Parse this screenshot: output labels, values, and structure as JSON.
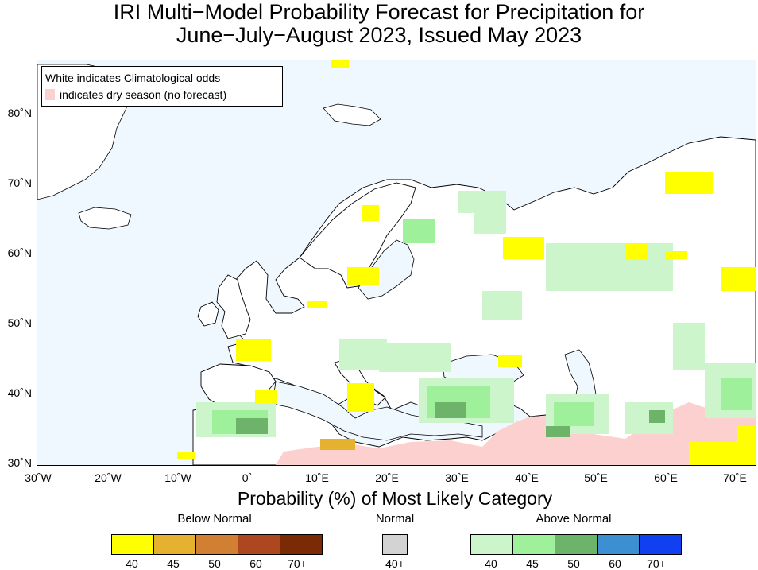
{
  "title": {
    "line1": "IRI Multi−Model Probability Forecast for Precipitation for",
    "line2": "June−July−August 2023, Issued May 2023"
  },
  "map_legend": {
    "line1": "White indicates Climatological odds",
    "line2": "indicates dry season (no forecast)"
  },
  "y_ticks": [
    "80˚N",
    "70˚N",
    "60˚N",
    "50˚N",
    "40˚N",
    "30˚N"
  ],
  "x_ticks": [
    "30˚W",
    "20˚W",
    "10˚W",
    "0˚",
    "10˚E",
    "20˚E",
    "30˚E",
    "40˚E",
    "50˚E",
    "60˚E",
    "70˚E"
  ],
  "x_axis_label": "Probability (%) of Most Likely Category",
  "categories": {
    "below": {
      "label": "Below Normal",
      "colors": [
        "#ffff00",
        "#e5b22f",
        "#d07f33",
        "#ad4720",
        "#7a2b06"
      ],
      "ticks": [
        "40",
        "45",
        "50",
        "60",
        "70+"
      ]
    },
    "normal": {
      "label": "Normal",
      "colors": [
        "#d3d3d3"
      ],
      "ticks": [
        "40+"
      ]
    },
    "above": {
      "label": "Above Normal",
      "colors": [
        "#ccf5cc",
        "#9ef09a",
        "#6db46a",
        "#3c8fd0",
        "#1040f0"
      ],
      "ticks": [
        "40",
        "45",
        "50",
        "60",
        "70+"
      ]
    }
  },
  "colors": {
    "ocean": "#f0f8ff",
    "dry_season": "#fdd0d0",
    "land": "#ffffff"
  }
}
